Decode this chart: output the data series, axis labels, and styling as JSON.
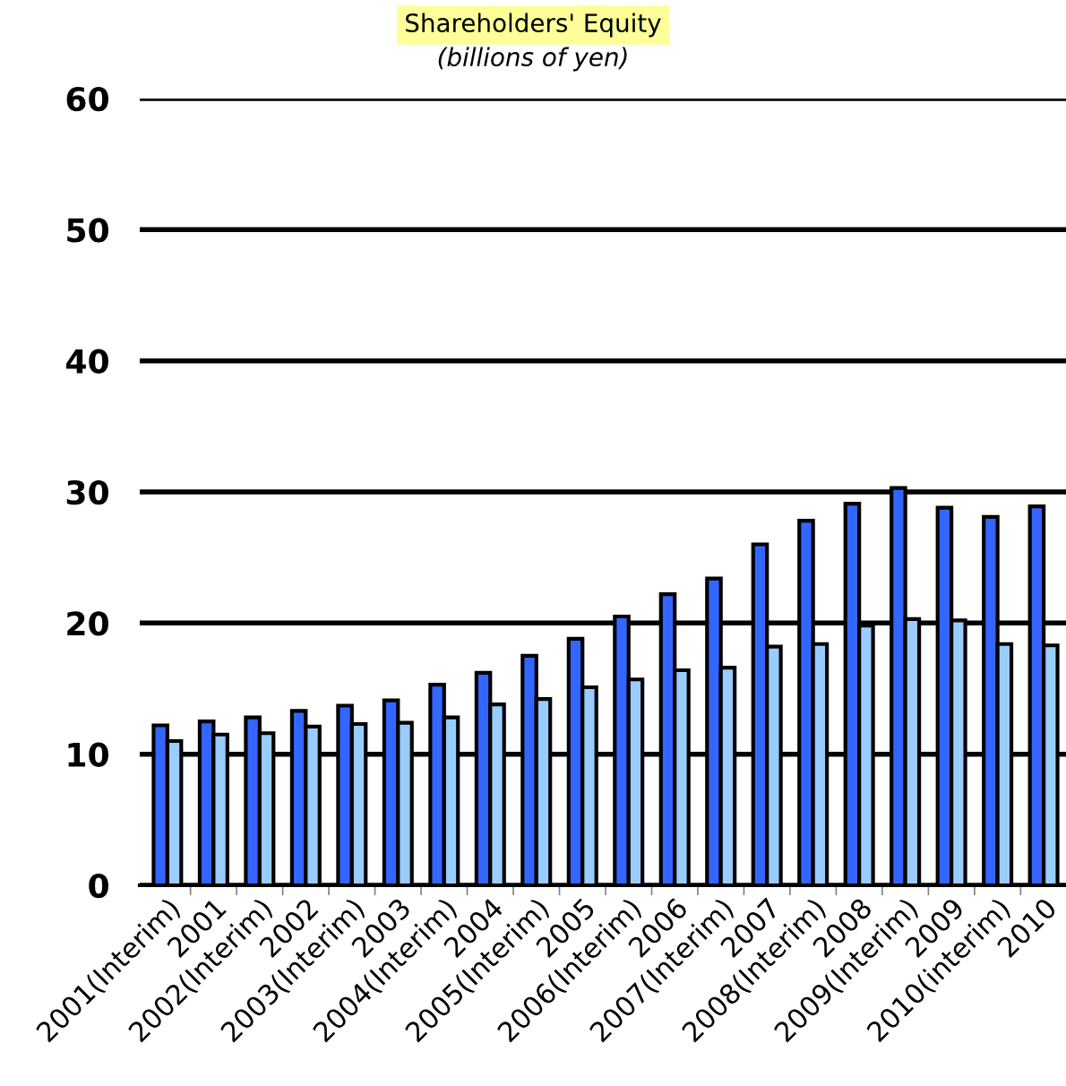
{
  "chart_data": {
    "type": "bar",
    "title": "Shareholders' Equity",
    "subtitle": "(billions of yen)",
    "categories": [
      "2001(Interim)",
      "2001",
      "2002(Interim)",
      "2002",
      "2003(Interim)",
      "2003",
      "2004(Interim)",
      "2004",
      "2005(Interim)",
      "2005",
      "2006(Interim)",
      "2006",
      "2007(Interim)",
      "2007",
      "2008(Interim)",
      "2008",
      "2009(Interim)",
      "2009",
      "2010(interim)",
      "2010"
    ],
    "series": [
      {
        "color": "#3366ff",
        "values": [
          12.2,
          12.5,
          12.8,
          13.3,
          13.7,
          14.1,
          15.3,
          16.2,
          17.5,
          18.8,
          20.5,
          22.2,
          23.4,
          26.0,
          27.8,
          29.1,
          30.3,
          28.8,
          28.1,
          28.9
        ]
      },
      {
        "color": "#99ccff",
        "values": [
          11.0,
          11.5,
          11.6,
          12.1,
          12.3,
          12.4,
          12.8,
          13.8,
          14.2,
          15.1,
          15.7,
          16.4,
          16.6,
          18.2,
          18.4,
          19.8,
          20.3,
          20.2,
          18.4,
          18.3
        ]
      }
    ],
    "ylim": [
      0,
      60
    ],
    "yticks": [
      0,
      10,
      20,
      30,
      40,
      50,
      60
    ],
    "grid": "y",
    "legend": false
  }
}
